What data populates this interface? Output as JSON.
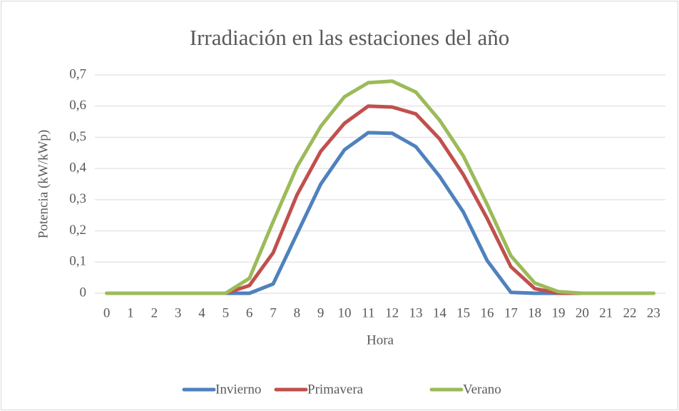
{
  "chart_data": {
    "type": "line",
    "title": "Irradiación en las estaciones del año",
    "x_label": "Hora",
    "y_label": "Potencia (kW/kWp)",
    "categories": [
      "0",
      "1",
      "2",
      "3",
      "4",
      "5",
      "6",
      "7",
      "8",
      "9",
      "10",
      "11",
      "12",
      "13",
      "14",
      "15",
      "16",
      "17",
      "18",
      "19",
      "20",
      "21",
      "22",
      "23"
    ],
    "series": [
      {
        "name": "Invierno",
        "color": "#4f81bd",
        "values": [
          0,
          0,
          0,
          0,
          0,
          0,
          0,
          0.03,
          0.19,
          0.35,
          0.46,
          0.515,
          0.513,
          0.47,
          0.375,
          0.26,
          0.105,
          0.003,
          0,
          0,
          0,
          0,
          0,
          0
        ]
      },
      {
        "name": "Primavera",
        "color": "#c0504d",
        "values": [
          0,
          0,
          0,
          0,
          0,
          0,
          0.025,
          0.13,
          0.315,
          0.455,
          0.545,
          0.6,
          0.597,
          0.575,
          0.495,
          0.38,
          0.24,
          0.085,
          0.015,
          0,
          0,
          0,
          0,
          0
        ]
      },
      {
        "name": "Verano",
        "color": "#9bbb59",
        "values": [
          0,
          0,
          0,
          0,
          0,
          0,
          0.048,
          0.23,
          0.405,
          0.535,
          0.63,
          0.675,
          0.68,
          0.645,
          0.555,
          0.44,
          0.285,
          0.12,
          0.033,
          0.005,
          0,
          0,
          0,
          0
        ]
      }
    ],
    "ylim": [
      0,
      0.7
    ],
    "yticks": [
      0,
      {
        "value": 0.1,
        "label": "0,1"
      },
      {
        "value": 0.2,
        "label": "0,2"
      },
      {
        "value": 0.3,
        "label": "0,3"
      },
      {
        "value": 0.4,
        "label": "0,4"
      },
      {
        "value": 0.5,
        "label": "0,5"
      },
      {
        "value": 0.6,
        "label": "0,6"
      },
      {
        "value": 0.7,
        "label": "0,7"
      }
    ],
    "grid": true,
    "legend": "bottom"
  }
}
